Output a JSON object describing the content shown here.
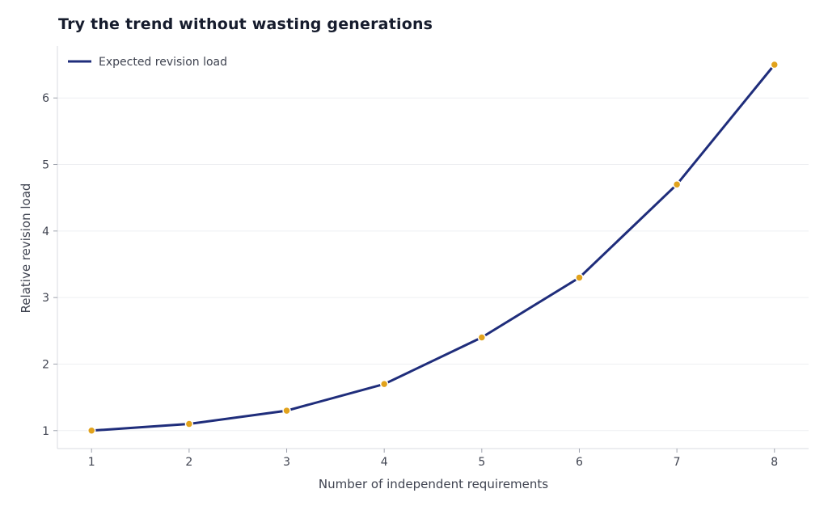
{
  "chart_data": {
    "type": "line",
    "title": "Try the trend without wasting generations",
    "xlabel": "Number of independent requirements",
    "ylabel": "Relative revision load",
    "x": [
      1,
      2,
      3,
      4,
      5,
      6,
      7,
      8
    ],
    "series": [
      {
        "name": "Expected revision load",
        "values": [
          1.0,
          1.1,
          1.3,
          1.7,
          2.4,
          3.3,
          4.7,
          6.5
        ],
        "line_color": "#1f2d7b",
        "marker_color": "#e1a21c"
      }
    ],
    "xticks": [
      "1",
      "2",
      "3",
      "4",
      "5",
      "6",
      "7",
      "8"
    ],
    "yticks": [
      "1",
      "2",
      "3",
      "4",
      "5",
      "6"
    ],
    "xlim": [
      0.65,
      8.35
    ],
    "ylim": [
      0.73,
      6.78
    ],
    "grid": "horizontal",
    "legend_position": "top-left"
  }
}
